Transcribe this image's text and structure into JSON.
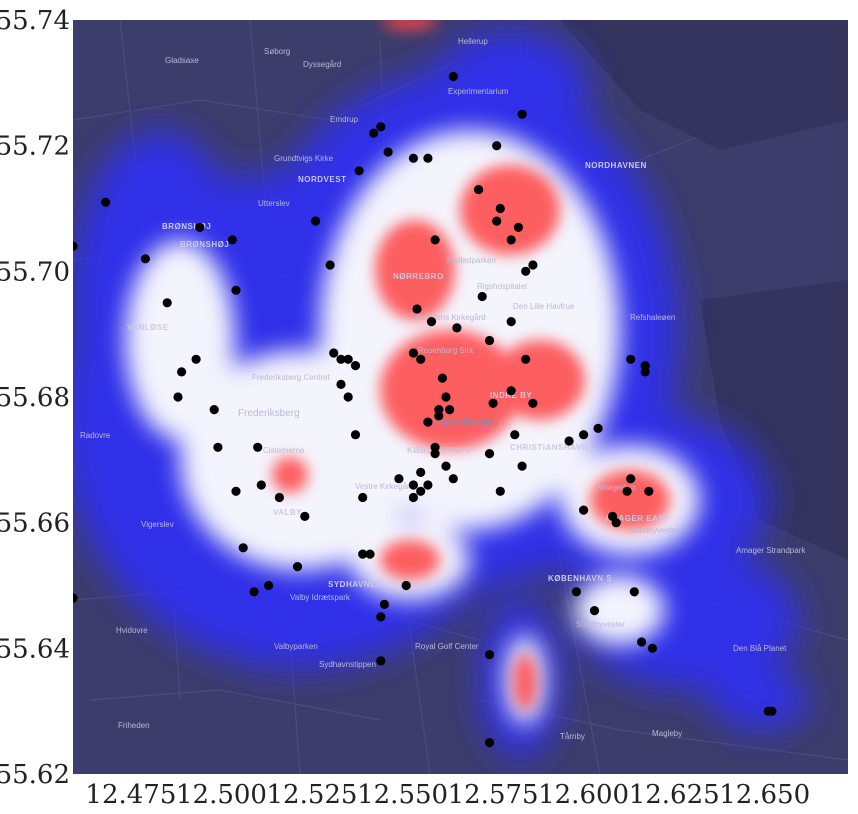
{
  "chart_data": {
    "type": "scatter",
    "title": "",
    "xlabel": "",
    "ylabel": "",
    "xlim": [
      12.459,
      12.673
    ],
    "ylim": [
      55.62,
      55.74
    ],
    "x_ticks": [
      "12.475",
      "12.500",
      "12.525",
      "12.550",
      "12.575",
      "12.600",
      "12.625",
      "12.650"
    ],
    "y_ticks": [
      "55.62",
      "55.64",
      "55.66",
      "55.68",
      "55.70",
      "55.72",
      "55.74"
    ],
    "background": "kernel density heatmap (blue-white-red) over a dark map of Copenhagen",
    "colors": {
      "map": "#3d3d6b",
      "low": "#2b2bff",
      "mid": "#ffffff",
      "high": "#ff3b3b",
      "points": "#000000"
    },
    "map_labels": [
      "Hellerup",
      "Experimentarium",
      "Søborg",
      "Gladsaxe",
      "Dyssegård",
      "Emdrup",
      "Grundtvigs Kirke",
      "NORDVEST",
      "NORDHAVNEN",
      "Utterslev",
      "BRØNSHØJ",
      "BRØNSHØJ",
      "Fælledparken",
      "NØRREBRO",
      "Rigshospitalet",
      "Den Lille Havfrue",
      "VANLØSE",
      "Assistens Kirkegård",
      "Refshaleøen",
      "Rosenborg Slot",
      "Frederiksberg Centret",
      "INDRE BY",
      "Frederiksberg",
      "Copenhagen",
      "Radovre",
      "Cisternerne",
      "KØBENHAVN V",
      "CHRISTIANSHAVN",
      "Amagerbro",
      "AMAGER EAST",
      "Vestre Kirkegård",
      "VALBY",
      "Vigerslev",
      "Sundbyvester",
      "Amager Strandpark",
      "SYDHAVNEN",
      "KØBENHAVN S",
      "Valby Idrætspark",
      "Hvidovre",
      "Valbyparken",
      "Royal Golf Center",
      "Sundbyvester",
      "Den Blå Planet",
      "Sydhavnstippen",
      "Friheden",
      "Tårnby",
      "Magleby"
    ],
    "points": [
      [
        12.459,
        55.704
      ],
      [
        12.459,
        55.648
      ],
      [
        12.468,
        55.711
      ],
      [
        12.479,
        55.702
      ],
      [
        12.485,
        55.695
      ],
      [
        12.489,
        55.684
      ],
      [
        12.493,
        55.686
      ],
      [
        12.488,
        55.68
      ],
      [
        12.494,
        55.707
      ],
      [
        12.503,
        55.705
      ],
      [
        12.504,
        55.697
      ],
      [
        12.498,
        55.678
      ],
      [
        12.499,
        55.672
      ],
      [
        12.504,
        55.665
      ],
      [
        12.506,
        55.656
      ],
      [
        12.51,
        55.672
      ],
      [
        12.511,
        55.666
      ],
      [
        12.516,
        55.664
      ],
      [
        12.521,
        55.653
      ],
      [
        12.513,
        55.65
      ],
      [
        12.509,
        55.649
      ],
      [
        12.523,
        55.661
      ],
      [
        12.526,
        55.708
      ],
      [
        12.53,
        55.701
      ],
      [
        12.531,
        55.687
      ],
      [
        12.533,
        55.686
      ],
      [
        12.535,
        55.686
      ],
      [
        12.537,
        55.685
      ],
      [
        12.533,
        55.682
      ],
      [
        12.535,
        55.68
      ],
      [
        12.538,
        55.716
      ],
      [
        12.542,
        55.722
      ],
      [
        12.544,
        55.723
      ],
      [
        12.546,
        55.719
      ],
      [
        12.537,
        55.674
      ],
      [
        12.539,
        55.664
      ],
      [
        12.539,
        55.655
      ],
      [
        12.541,
        55.655
      ],
      [
        12.544,
        55.645
      ],
      [
        12.545,
        55.647
      ],
      [
        12.551,
        55.65
      ],
      [
        12.544,
        55.638
      ],
      [
        12.553,
        55.718
      ],
      [
        12.557,
        55.718
      ],
      [
        12.559,
        55.705
      ],
      [
        12.554,
        55.694
      ],
      [
        12.558,
        55.692
      ],
      [
        12.553,
        55.687
      ],
      [
        12.555,
        55.686
      ],
      [
        12.561,
        55.683
      ],
      [
        12.565,
        55.691
      ],
      [
        12.562,
        55.68
      ],
      [
        12.56,
        55.678
      ],
      [
        12.563,
        55.678
      ],
      [
        12.557,
        55.676
      ],
      [
        12.56,
        55.677
      ],
      [
        12.559,
        55.672
      ],
      [
        12.559,
        55.671
      ],
      [
        12.555,
        55.668
      ],
      [
        12.549,
        55.667
      ],
      [
        12.553,
        55.666
      ],
      [
        12.557,
        55.666
      ],
      [
        12.553,
        55.664
      ],
      [
        12.555,
        55.665
      ],
      [
        12.564,
        55.667
      ],
      [
        12.562,
        55.669
      ],
      [
        12.564,
        55.731
      ],
      [
        12.571,
        55.713
      ],
      [
        12.576,
        55.708
      ],
      [
        12.577,
        55.71
      ],
      [
        12.576,
        55.72
      ],
      [
        12.582,
        55.707
      ],
      [
        12.58,
        55.705
      ],
      [
        12.572,
        55.696
      ],
      [
        12.58,
        55.692
      ],
      [
        12.574,
        55.689
      ],
      [
        12.584,
        55.7
      ],
      [
        12.586,
        55.701
      ],
      [
        12.58,
        55.681
      ],
      [
        12.575,
        55.679
      ],
      [
        12.584,
        55.686
      ],
      [
        12.586,
        55.679
      ],
      [
        12.574,
        55.671
      ],
      [
        12.581,
        55.674
      ],
      [
        12.583,
        55.669
      ],
      [
        12.577,
        55.665
      ],
      [
        12.583,
        55.725
      ],
      [
        12.596,
        55.673
      ],
      [
        12.6,
        55.674
      ],
      [
        12.604,
        55.675
      ],
      [
        12.6,
        55.662
      ],
      [
        12.608,
        55.661
      ],
      [
        12.609,
        55.66
      ],
      [
        12.612,
        55.665
      ],
      [
        12.613,
        55.667
      ],
      [
        12.618,
        55.665
      ],
      [
        12.613,
        55.686
      ],
      [
        12.617,
        55.685
      ],
      [
        12.617,
        55.684
      ],
      [
        12.598,
        55.649
      ],
      [
        12.603,
        55.646
      ],
      [
        12.614,
        55.649
      ],
      [
        12.616,
        55.641
      ],
      [
        12.619,
        55.64
      ],
      [
        12.574,
        55.639
      ],
      [
        12.574,
        55.625
      ],
      [
        12.651,
        55.63
      ],
      [
        12.652,
        55.63
      ]
    ]
  }
}
